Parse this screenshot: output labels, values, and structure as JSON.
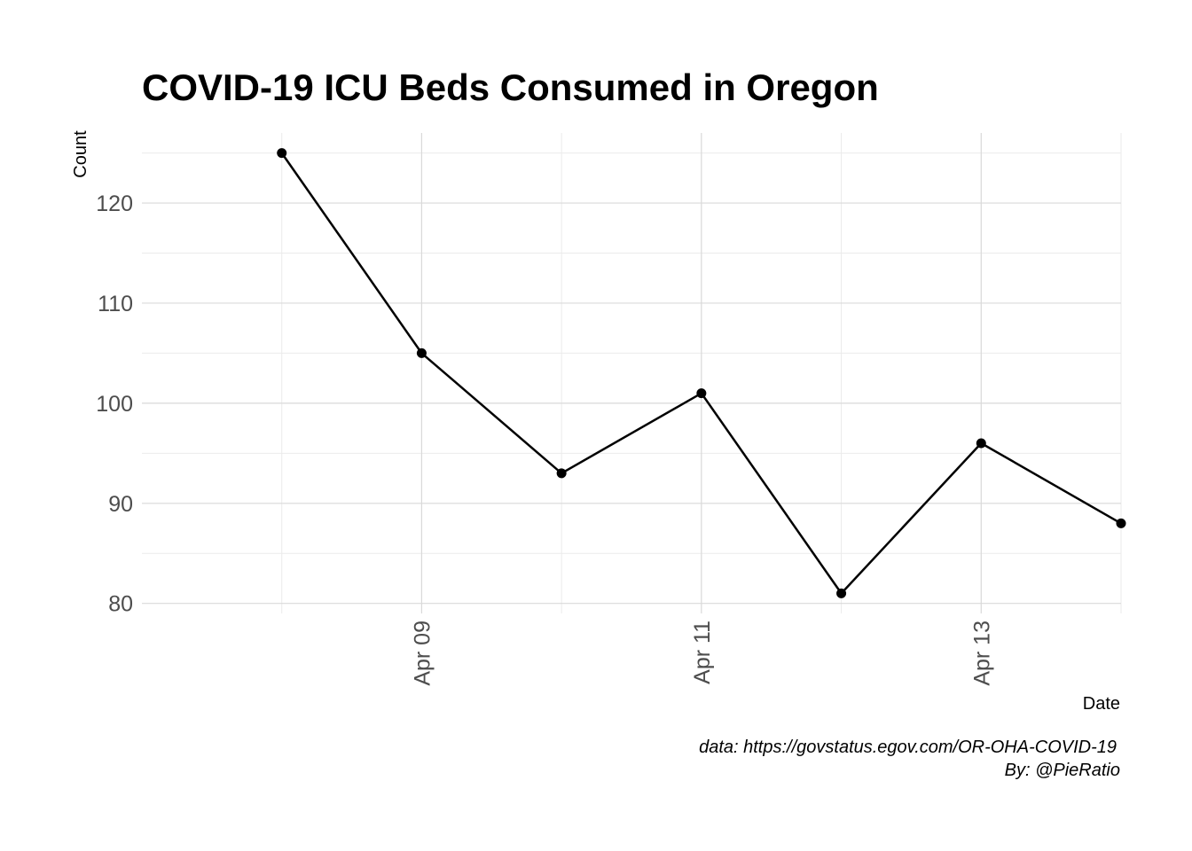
{
  "chart_data": {
    "type": "line",
    "title": "COVID-19 ICU Beds Consumed in Oregon",
    "xlabel": "Date",
    "ylabel": "Count",
    "x": [
      "2020-04-08",
      "2020-04-09",
      "2020-04-10",
      "2020-04-11",
      "2020-04-12",
      "2020-04-13",
      "2020-04-14"
    ],
    "values": [
      125,
      105,
      93,
      101,
      81,
      96,
      88
    ],
    "x_ticks": [
      {
        "date": "2020-04-09",
        "label": "Apr 09"
      },
      {
        "date": "2020-04-11",
        "label": "Apr 11"
      },
      {
        "date": "2020-04-13",
        "label": "Apr 13"
      }
    ],
    "y_ticks": [
      80,
      90,
      100,
      110,
      120
    ],
    "ylim": [
      79,
      127
    ],
    "xlim": [
      "2020-04-07",
      "2020-04-14"
    ],
    "grid": true,
    "legend": "none",
    "caption_lines": [
      "data: https://govstatus.egov.com/OR-OHA-COVID-19",
      "By: @PieRatio"
    ],
    "colors": {
      "line": "#000000",
      "point": "#000000",
      "grid_major": "#d9d9d9",
      "grid_minor": "#ebebeb",
      "tick_text": "#4d4d4d"
    }
  }
}
